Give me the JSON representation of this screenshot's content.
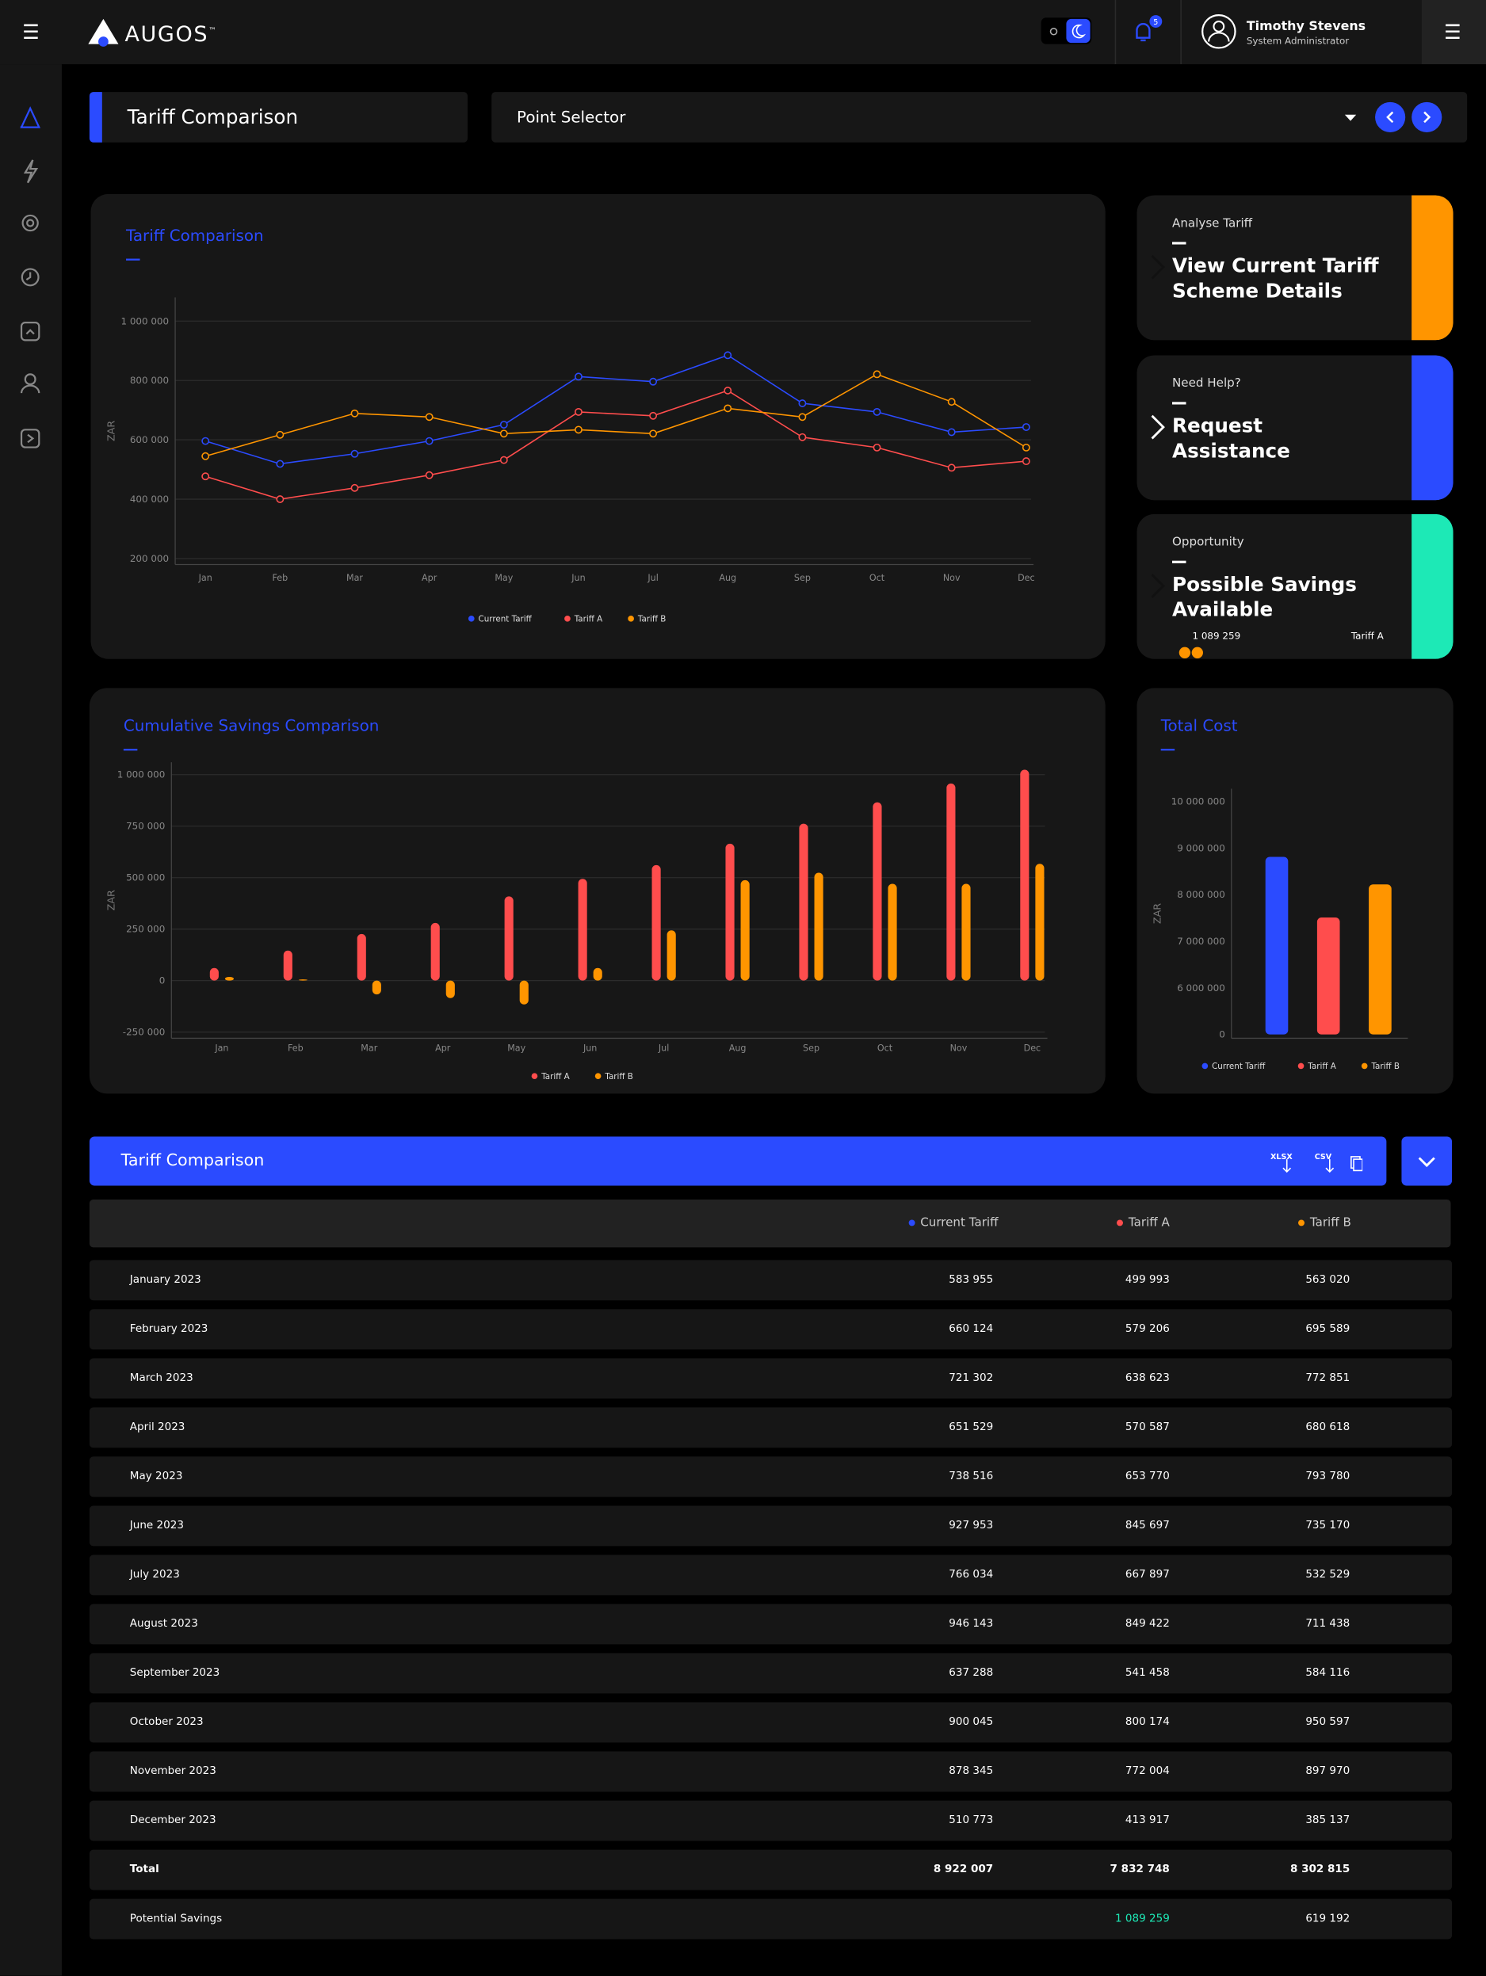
{
  "header": {
    "brand": "AUGOS",
    "trademark": "™",
    "notifications": 5,
    "user_name": "Timothy Stevens",
    "user_role": "System Administrator"
  },
  "toolbar": {
    "title": "Tariff Comparison",
    "selector": "Point Selector"
  },
  "cards": [
    {
      "label": "Analyse Tariff",
      "title": "View Current Tariff Scheme Details",
      "color": "#ff9500"
    },
    {
      "label": "Need Help?",
      "title": "Request Assistance",
      "color": "#2b4bff"
    },
    {
      "label": "Opportunity",
      "title": "Possible Savings Available",
      "color": "#1de9b6",
      "value": "1 089 259",
      "tariff": "Tariff A"
    }
  ],
  "chart_data": [
    {
      "type": "line",
      "title": "Tariff Comparison",
      "y_label": "ZAR",
      "categories": [
        "Jan",
        "Feb",
        "Mar",
        "Apr",
        "May",
        "Jun",
        "Jul",
        "Aug",
        "Sep",
        "Oct",
        "Nov",
        "Dec"
      ],
      "series": [
        {
          "name": "Current Tariff",
          "color": "#2b4bff",
          "values": [
            596000,
            519000,
            553000,
            596000,
            651000,
            813000,
            796000,
            885000,
            723000,
            694000,
            626000,
            643000
          ]
        },
        {
          "name": "Tariff A",
          "color": "#ff4d4d",
          "values": [
            477000,
            400000,
            438000,
            481000,
            532000,
            694000,
            681000,
            766000,
            609000,
            574000,
            506000,
            528000
          ]
        },
        {
          "name": "Tariff B",
          "color": "#ff9500",
          "values": [
            545000,
            617000,
            689000,
            677000,
            621000,
            634000,
            621000,
            706000,
            677000,
            821000,
            728000,
            574000
          ]
        }
      ],
      "ylim": [
        180000,
        1080000
      ],
      "yticks": [
        {
          "value": 200000,
          "label": "200 000"
        },
        {
          "value": 400000,
          "label": "400 000"
        },
        {
          "value": 600000,
          "label": "600 000"
        },
        {
          "value": 800000,
          "label": "800 000"
        },
        {
          "value": 1000000,
          "label": "1 000 000"
        }
      ],
      "grid": true,
      "legend": "bottom"
    },
    {
      "type": "bar",
      "title": "Cumulative Savings Comparison",
      "y_label": "ZAR",
      "categories": [
        "Jan",
        "Feb",
        "Mar",
        "Apr",
        "May",
        "Jun",
        "Jul",
        "Aug",
        "Sep",
        "Oct",
        "Nov",
        "Dec"
      ],
      "series": [
        {
          "name": "Tariff A",
          "color": "#ff4d4d",
          "values": [
            61000,
            146000,
            226000,
            280000,
            409000,
            494000,
            561000,
            665000,
            762000,
            866000,
            957000,
            1024000
          ]
        },
        {
          "name": "Tariff B",
          "color": "#ff9500",
          "values": [
            18000,
            6000,
            -67000,
            -85000,
            -116000,
            61000,
            244000,
            488000,
            524000,
            470000,
            470000,
            567000
          ]
        }
      ],
      "ylim": [
        -280000,
        1060000
      ],
      "yticks": [
        {
          "value": -250000,
          "label": "-250 000"
        },
        0,
        {
          "value": 250000,
          "label": "250 000"
        },
        {
          "value": 500000,
          "label": "500 000"
        },
        {
          "value": 750000,
          "label": "750 000"
        },
        {
          "value": 1000000,
          "label": "1 000 000"
        }
      ],
      "grid": true,
      "legend": "bottom"
    },
    {
      "type": "bar",
      "title": "Total Cost",
      "y_label": "ZAR",
      "axis_break": true,
      "categories": [
        null
      ],
      "series": [
        {
          "name": "Current Tariff",
          "color": "#2b4bff",
          "values": [
            8810000
          ]
        },
        {
          "name": "Tariff A",
          "color": "#ff4d4d",
          "values": [
            7510000
          ]
        },
        {
          "name": "Tariff B",
          "color": "#ff9500",
          "values": [
            8220000
          ]
        }
      ],
      "ylim": [
        0,
        10270000
      ],
      "yticks": [
        0,
        {
          "value": 6000000,
          "label": "6 000 000"
        },
        {
          "value": 7000000,
          "label": "7 000 000"
        },
        {
          "value": 8000000,
          "label": "8 000 000"
        },
        {
          "value": 9000000,
          "label": "9 000 000"
        },
        {
          "value": 10000000,
          "label": "10 000 000"
        }
      ],
      "grid": false,
      "legend": "bottom"
    }
  ],
  "table": {
    "title": "Tariff Comparison",
    "exports": [
      "XLSX",
      "CSV"
    ],
    "columns": [
      {
        "name": "Current Tariff",
        "color": "#2b4bff"
      },
      {
        "name": "Tariff A",
        "color": "#ff4d4d"
      },
      {
        "name": "Tariff B",
        "color": "#ff9500"
      }
    ],
    "rows": [
      [
        "January 2023",
        "583 955",
        "499 993",
        "563 020"
      ],
      [
        "February 2023",
        "660 124",
        "579 206",
        "695 589"
      ],
      [
        "March 2023",
        "721 302",
        "638 623",
        "772 851"
      ],
      [
        "April 2023",
        "651 529",
        "570 587",
        "680 618"
      ],
      [
        "May 2023",
        "738 516",
        "653 770",
        "793 780"
      ],
      [
        "June 2023",
        "927 953",
        "845 697",
        "735 170"
      ],
      [
        "July 2023",
        "766 034",
        "667 897",
        "532 529"
      ],
      [
        "August 2023",
        "946 143",
        "849 422",
        "711 438"
      ],
      [
        "September 2023",
        "637 288",
        "541 458",
        "584 116"
      ],
      [
        "October 2023",
        "900 045",
        "800 174",
        "950 597"
      ],
      [
        "November 2023",
        "878 345",
        "772 004",
        "897 970"
      ],
      [
        "December 2023",
        "510 773",
        "413 917",
        "385 137"
      ]
    ],
    "total": [
      "Total",
      "8 922 007",
      "7 832 748",
      "8 302 815"
    ],
    "savings": {
      "label": "Potential Savings",
      "values": [
        "1 089 259",
        "619 192"
      ]
    }
  }
}
